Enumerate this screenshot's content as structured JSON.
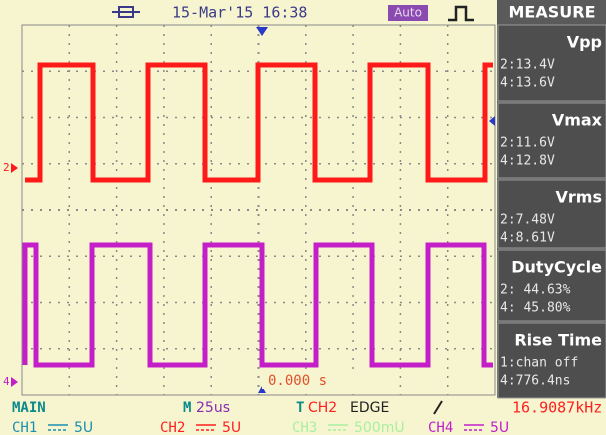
{
  "header": {
    "date": "15-Mar'15 16:38",
    "mode": "Auto",
    "panel_title": "MEASURE"
  },
  "measurements": [
    {
      "name": "Vpp",
      "lines": [
        "2:13.4V",
        "4:13.6V"
      ]
    },
    {
      "name": "Vmax",
      "lines": [
        "2:11.6V",
        "4:12.8V"
      ]
    },
    {
      "name": "Vrms",
      "lines": [
        "2:7.48V",
        "4:8.61V"
      ]
    },
    {
      "name": "DutyCycle",
      "lines": [
        "2: 44.63%",
        "4: 45.80%"
      ]
    },
    {
      "name": "Rise Time",
      "lines": [
        "1:chan off",
        "4:776.4ns"
      ]
    }
  ],
  "markers": {
    "ch2": "2",
    "ch4": "4",
    "trigger_time": "0.000 s"
  },
  "footer": {
    "mode": "MAIN",
    "timebase_prefix": "M",
    "timebase": "25us",
    "trigger_prefix": "T",
    "trigger_source": "CH2",
    "trigger_type": "EDGE",
    "frequency": "16.9087kHz",
    "channels": [
      {
        "name": "CH1",
        "scale": "5U",
        "color": "#1a8fb0"
      },
      {
        "name": "CH2",
        "scale": "5U",
        "color": "#ff2020"
      },
      {
        "name": "CH3",
        "scale": "500mU",
        "color": "#a8f0a0"
      },
      {
        "name": "CH4",
        "scale": "5U",
        "color": "#c020c8"
      }
    ]
  }
}
